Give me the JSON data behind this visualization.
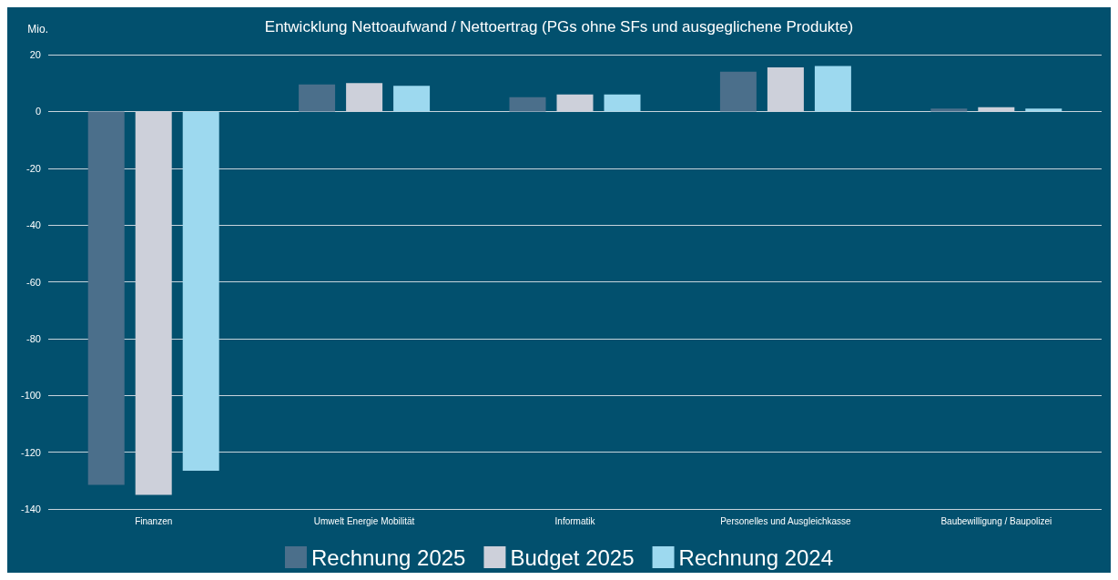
{
  "chart_data": {
    "type": "bar",
    "title": "Entwicklung Nettoaufwand / Nettoertrag (PGs ohne SFs und ausgeglichene Produkte)",
    "ylabel": "Mio.",
    "categories": [
      "Finanzen",
      "Umwelt Energie Mobilität",
      "Informatik",
      "Personelles und Ausgleichkasse",
      "Baubewilligung / Baupolizei"
    ],
    "series": [
      {
        "name": "Rechnung 2025",
        "color": "#4b6f8b",
        "values": [
          -131.5,
          9.5,
          5,
          14,
          1
        ]
      },
      {
        "name": "Budget 2025",
        "color": "#cdd0da",
        "values": [
          -135,
          10,
          6,
          15.5,
          1.5
        ]
      },
      {
        "name": "Rechnung 2024",
        "color": "#9dd9ef",
        "values": [
          -126.5,
          9,
          6,
          16,
          1
        ]
      }
    ],
    "ylim": [
      -140,
      20
    ],
    "yticks": [
      20,
      0,
      -20,
      -40,
      -60,
      -80,
      -100,
      -120,
      -140
    ],
    "grid": "y",
    "legend": "bottom"
  }
}
